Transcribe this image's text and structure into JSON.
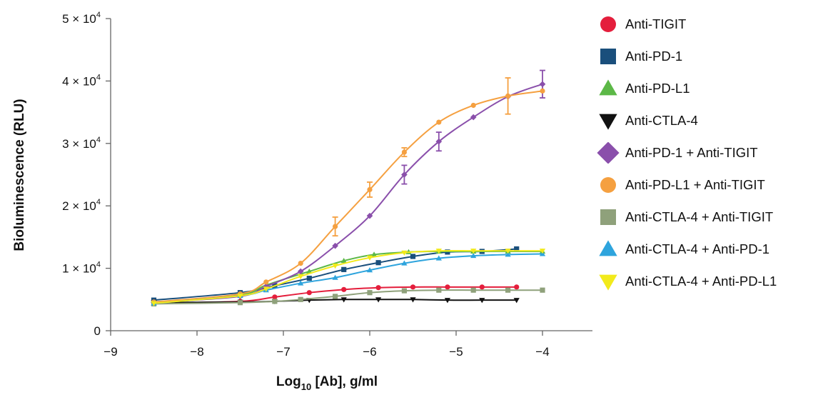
{
  "chart_data": {
    "type": "line",
    "xlabel": "Log10 [Ab], g/ml",
    "xlabel_parts": {
      "main": "Log",
      "sub": "10",
      "rest": " [Ab], g/ml"
    },
    "ylabel": "Bioluminescence (RLU)",
    "xlim": [
      -9,
      -4
    ],
    "ylim": [
      0,
      50000
    ],
    "x_ticks": [
      {
        "value": -9,
        "label": "−9"
      },
      {
        "value": -8,
        "label": "−8"
      },
      {
        "value": -7,
        "label": "−7"
      },
      {
        "value": -6,
        "label": "−6"
      },
      {
        "value": -5,
        "label": "−5"
      },
      {
        "value": -4,
        "label": "−4"
      }
    ],
    "y_ticks": [
      {
        "value": 0,
        "mantissa": "0",
        "exponent": ""
      },
      {
        "value": 10000,
        "mantissa": "1 × 10",
        "exponent": "4"
      },
      {
        "value": 20000,
        "mantissa": "2 × 10",
        "exponent": "4"
      },
      {
        "value": 30000,
        "mantissa": "3 × 10",
        "exponent": "4"
      },
      {
        "value": 40000,
        "mantissa": "4 × 10",
        "exponent": "4"
      },
      {
        "value": 50000,
        "mantissa": "5 × 10",
        "exponent": "4"
      }
    ],
    "grid": false,
    "legend_position": "right",
    "series": [
      {
        "name": "Anti-TIGIT",
        "color": "#e41e3c",
        "marker": "circle",
        "x": [
          -8.5,
          -7.5,
          -7.1,
          -6.7,
          -6.3,
          -5.9,
          -5.5,
          -5.1,
          -4.7,
          -4.3
        ],
        "y": [
          4400,
          4700,
          5400,
          6100,
          6600,
          6900,
          7000,
          7000,
          7000,
          7000
        ]
      },
      {
        "name": "Anti-PD-1",
        "color": "#1a4f7c",
        "marker": "square",
        "x": [
          -8.5,
          -7.5,
          -7.1,
          -6.7,
          -6.3,
          -5.9,
          -5.5,
          -5.1,
          -4.7,
          -4.3
        ],
        "y": [
          4900,
          6100,
          7200,
          8400,
          9800,
          10900,
          11900,
          12600,
          12700,
          13100
        ]
      },
      {
        "name": "Anti-PD-L1",
        "color": "#5cb847",
        "marker": "triangle-up",
        "x": [
          -8.5,
          -7.5,
          -7.2,
          -6.7,
          -6.3,
          -5.95,
          -5.55,
          -5.2,
          -4.8,
          -4.4,
          -4.0
        ],
        "y": [
          4400,
          5700,
          7300,
          9500,
          11200,
          12200,
          12600,
          12700,
          12700,
          12700,
          12700
        ]
      },
      {
        "name": "Anti-CTLA-4",
        "color": "#111111",
        "marker": "triangle-down",
        "x": [
          -8.5,
          -7.5,
          -7.1,
          -6.7,
          -6.3,
          -5.9,
          -5.5,
          -5.1,
          -4.7,
          -4.3
        ],
        "y": [
          4500,
          4600,
          4700,
          4900,
          5000,
          5000,
          5000,
          4900,
          4900,
          4900
        ]
      },
      {
        "name": "Anti-PD-1 + Anti-TIGIT",
        "color": "#8a4fab",
        "marker": "diamond",
        "x": [
          -8.5,
          -7.5,
          -7.2,
          -6.8,
          -6.4,
          -6.0,
          -5.6,
          -5.2,
          -4.8,
          -4.4,
          -4.0
        ],
        "y": [
          4500,
          5500,
          7100,
          9500,
          13600,
          18400,
          25000,
          30300,
          34200,
          37500,
          39500
        ],
        "err": [
          0,
          0,
          0,
          0,
          0,
          0,
          1500,
          1500,
          0,
          0,
          2200
        ]
      },
      {
        "name": "Anti-PD-L1 + Anti-TIGIT",
        "color": "#f5a040",
        "marker": "circle",
        "x": [
          -8.5,
          -7.5,
          -7.2,
          -6.8,
          -6.4,
          -6.0,
          -5.6,
          -5.2,
          -4.8,
          -4.4,
          -4.0
        ],
        "y": [
          4600,
          5900,
          7800,
          10800,
          16700,
          22600,
          28600,
          33400,
          36100,
          37600,
          38400
        ],
        "err": [
          0,
          0,
          0,
          0,
          1500,
          1200,
          700,
          0,
          0,
          2900,
          0
        ]
      },
      {
        "name": "Anti-CTLA-4 + Anti-TIGIT",
        "color": "#8fa17b",
        "marker": "square",
        "x": [
          -8.5,
          -7.5,
          -7.1,
          -6.8,
          -6.4,
          -6.0,
          -5.6,
          -5.2,
          -4.8,
          -4.4,
          -4.0
        ],
        "y": [
          4300,
          4500,
          4700,
          5000,
          5500,
          6100,
          6400,
          6500,
          6500,
          6500,
          6500
        ]
      },
      {
        "name": "Anti-CTLA-4 + Anti-PD-1",
        "color": "#2ea4dd",
        "marker": "triangle-up",
        "x": [
          -8.5,
          -7.5,
          -7.2,
          -6.8,
          -6.4,
          -6.0,
          -5.6,
          -5.2,
          -4.8,
          -4.4,
          -4.0
        ],
        "y": [
          4400,
          5600,
          6500,
          7600,
          8500,
          9700,
          10800,
          11600,
          12000,
          12200,
          12300
        ]
      },
      {
        "name": "Anti-CTLA-4 + Anti-PD-L1",
        "color": "#f2ea1b",
        "marker": "triangle-down",
        "x": [
          -8.5,
          -7.5,
          -7.2,
          -6.8,
          -6.4,
          -6.0,
          -5.6,
          -5.2,
          -4.8,
          -4.4,
          -4.0
        ],
        "y": [
          4400,
          5600,
          6700,
          8700,
          10400,
          11700,
          12500,
          12800,
          12800,
          12800,
          12800
        ]
      }
    ]
  }
}
